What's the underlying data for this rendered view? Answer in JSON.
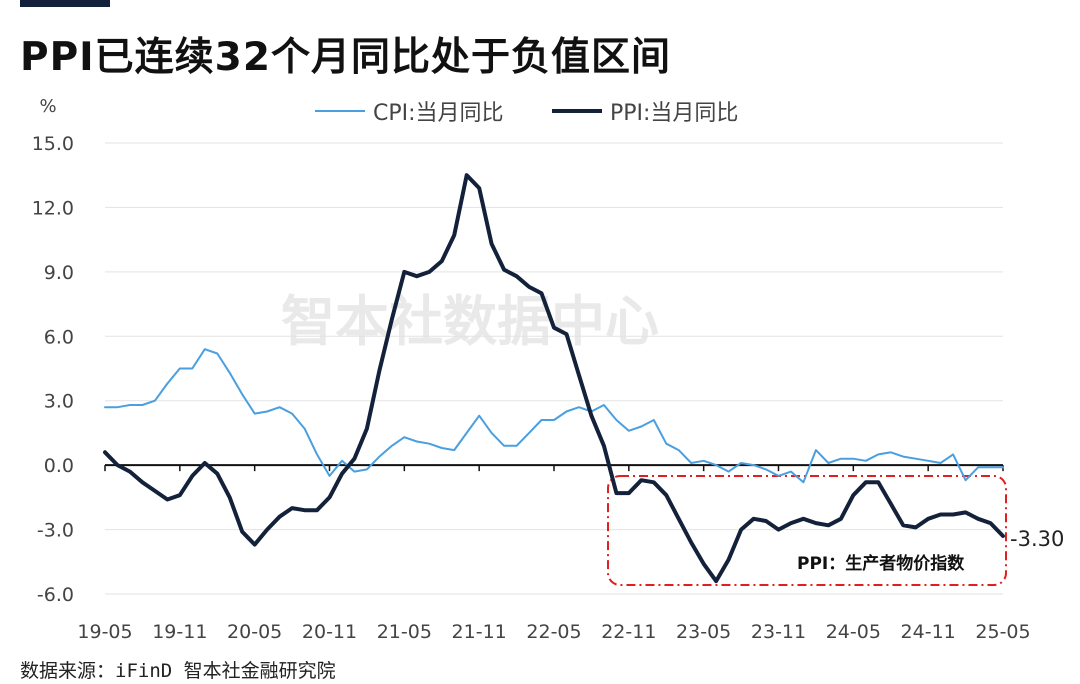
{
  "title": "PPI已连续32个月同比处于负值区间",
  "source": "数据来源：iFinD 智本社金融研究院",
  "watermark": "智本社数据中心",
  "chart_data": {
    "type": "line",
    "yunit": "%",
    "ylim": [
      -6.0,
      15.0
    ],
    "yticks": [
      "15.0",
      "12.0",
      "9.0",
      "6.0",
      "3.0",
      "0.0",
      "-3.0",
      "-6.0"
    ],
    "xticks": [
      "19-05",
      "19-11",
      "20-05",
      "20-11",
      "21-05",
      "21-11",
      "22-05",
      "22-11",
      "23-05",
      "23-11",
      "24-05",
      "24-11",
      "25-05"
    ],
    "grid": "horizontal",
    "legend": "top-center",
    "x": [
      "19-05",
      "19-06",
      "19-07",
      "19-08",
      "19-09",
      "19-10",
      "19-11",
      "19-12",
      "20-01",
      "20-02",
      "20-03",
      "20-04",
      "20-05",
      "20-06",
      "20-07",
      "20-08",
      "20-09",
      "20-10",
      "20-11",
      "20-12",
      "21-01",
      "21-02",
      "21-03",
      "21-04",
      "21-05",
      "21-06",
      "21-07",
      "21-08",
      "21-09",
      "21-10",
      "21-11",
      "21-12",
      "22-01",
      "22-02",
      "22-03",
      "22-04",
      "22-05",
      "22-06",
      "22-07",
      "22-08",
      "22-09",
      "22-10",
      "22-11",
      "22-12",
      "23-01",
      "23-02",
      "23-03",
      "23-04",
      "23-05",
      "23-06",
      "23-07",
      "23-08",
      "23-09",
      "23-10",
      "23-11",
      "23-12",
      "24-01",
      "24-02",
      "24-03",
      "24-04",
      "24-05",
      "24-06",
      "24-07",
      "24-08",
      "24-09",
      "24-10",
      "24-11",
      "24-12",
      "25-01",
      "25-02",
      "25-03",
      "25-04",
      "25-05"
    ],
    "series": [
      {
        "name": "CPI:当月同比",
        "color": "#4a9fe0",
        "values": [
          2.7,
          2.7,
          2.8,
          2.8,
          3.0,
          3.8,
          4.5,
          4.5,
          5.4,
          5.2,
          4.3,
          3.3,
          2.4,
          2.5,
          2.7,
          2.4,
          1.7,
          0.5,
          -0.5,
          0.2,
          -0.3,
          -0.2,
          0.4,
          0.9,
          1.3,
          1.1,
          1.0,
          0.8,
          0.7,
          1.5,
          2.3,
          1.5,
          0.9,
          0.9,
          1.5,
          2.1,
          2.1,
          2.5,
          2.7,
          2.5,
          2.8,
          2.1,
          1.6,
          1.8,
          2.1,
          1.0,
          0.7,
          0.1,
          0.2,
          0.0,
          -0.3,
          0.1,
          0.0,
          -0.2,
          -0.5,
          -0.3,
          -0.8,
          0.7,
          0.1,
          0.3,
          0.3,
          0.2,
          0.5,
          0.6,
          0.4,
          0.3,
          0.2,
          0.1,
          0.5,
          -0.7,
          -0.1,
          -0.1,
          -0.1
        ]
      },
      {
        "name": "PPI:当月同比",
        "color": "#13223a",
        "values": [
          0.6,
          0.0,
          -0.3,
          -0.8,
          -1.2,
          -1.6,
          -1.4,
          -0.5,
          0.1,
          -0.4,
          -1.5,
          -3.1,
          -3.7,
          -3.0,
          -2.4,
          -2.0,
          -2.1,
          -2.1,
          -1.5,
          -0.4,
          0.3,
          1.7,
          4.4,
          6.8,
          9.0,
          8.8,
          9.0,
          9.5,
          10.7,
          13.5,
          12.9,
          10.3,
          9.1,
          8.8,
          8.3,
          8.0,
          6.4,
          6.1,
          4.2,
          2.3,
          0.9,
          -1.3,
          -1.3,
          -0.7,
          -0.8,
          -1.4,
          -2.5,
          -3.6,
          -4.6,
          -5.4,
          -4.4,
          -3.0,
          -2.5,
          -2.6,
          -3.0,
          -2.7,
          -2.5,
          -2.7,
          -2.8,
          -2.5,
          -1.4,
          -0.8,
          -0.8,
          -1.8,
          -2.8,
          -2.9,
          -2.5,
          -2.3,
          -2.3,
          -2.2,
          -2.5,
          -2.7,
          -3.3
        ]
      }
    ],
    "last_value_label": "-3.30",
    "annotation": "PPI：生产者物价指数"
  }
}
